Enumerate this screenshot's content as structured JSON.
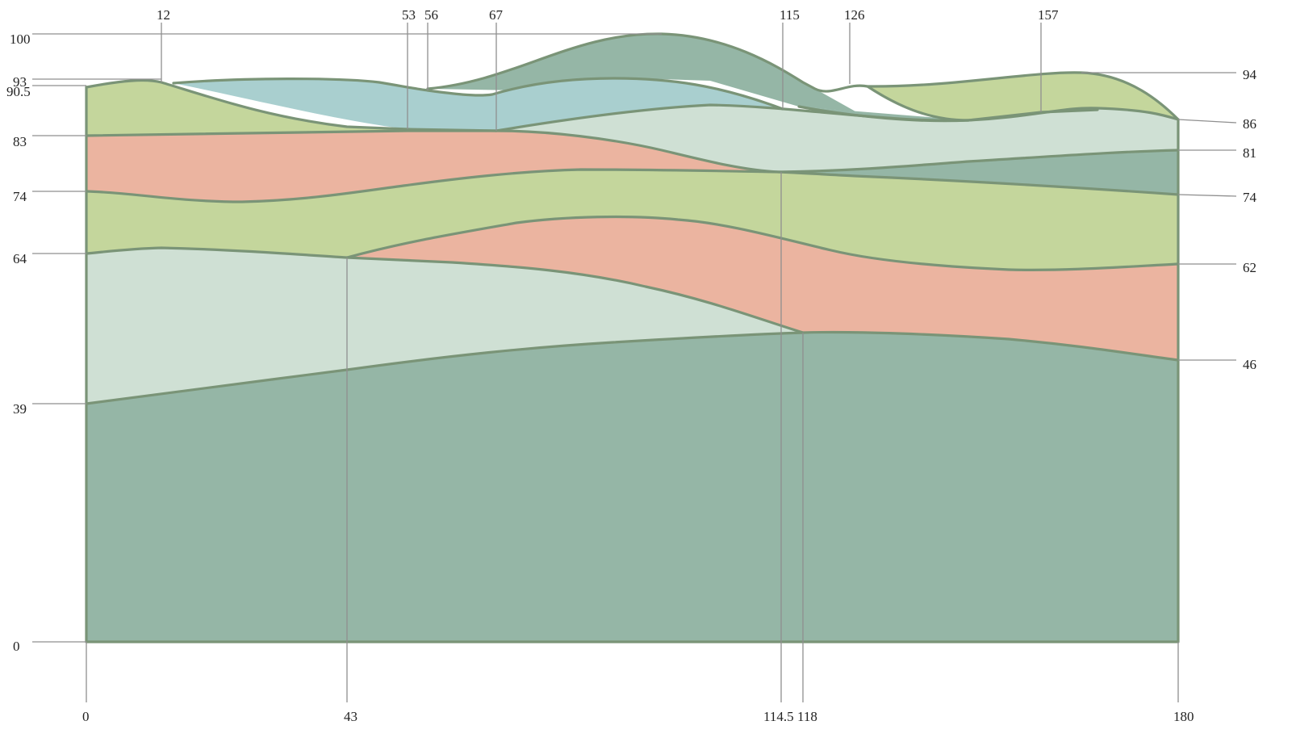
{
  "layers": [
    {
      "id": "dark-top",
      "color": "#95b6a6"
    },
    {
      "id": "green-right",
      "color": "#c4d69c"
    },
    {
      "id": "blue-top",
      "color": "#a9cfcf"
    },
    {
      "id": "green-top",
      "color": "#c4d69c"
    },
    {
      "id": "pale-upper",
      "color": "#cfe0d4"
    },
    {
      "id": "dark-right",
      "color": "#95b6a6"
    },
    {
      "id": "salmon-upper",
      "color": "#ebb4a0"
    },
    {
      "id": "green-middle",
      "color": "#c4d69c"
    },
    {
      "id": "salmon-lower",
      "color": "#ebb4a0"
    },
    {
      "id": "pale-lower",
      "color": "#cfe0d4"
    },
    {
      "id": "dark-base",
      "color": "#95b6a6"
    }
  ],
  "boundary_color": "#7a9477",
  "left_labels": {
    "l100": "100",
    "l93": "93",
    "l905": "90.5",
    "l83": "83",
    "l74": "74",
    "l64": "64",
    "l39": "39",
    "l0": "0"
  },
  "right_labels": {
    "r94": "94",
    "r86": "86",
    "r81": "81",
    "r74": "74",
    "r62": "62",
    "r46": "46"
  },
  "top_labels": {
    "t12": "12",
    "t53": "53",
    "t56": "56",
    "t67": "67",
    "t115": "115",
    "t126": "126",
    "t157": "157"
  },
  "bottom_labels": {
    "b0": "0",
    "b43": "43",
    "b1145": "114.5",
    "b118": "118",
    "b180": "180"
  }
}
